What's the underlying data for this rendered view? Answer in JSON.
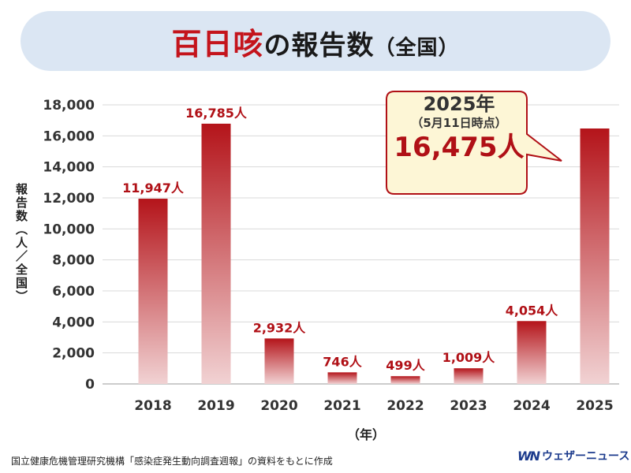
{
  "title": {
    "accent": "百日咳",
    "rest": "の報告数",
    "sub": "（全国）"
  },
  "callout": {
    "year": "2025年",
    "date": "（5月11日時点）",
    "value": "16,475人"
  },
  "footer": {
    "source": "国立健康危機管理研究機構「感染症発生動向調査週報」の資料をもとに作成",
    "brand_logo": "WN",
    "brand_name": "ウェザーニュース"
  },
  "colors": {
    "bar_top": "#b4141a",
    "bar_bottom": "#f1d2d3",
    "label": "#b01016",
    "callout_bg": "#fdf6d6",
    "callout_border": "#b01016",
    "title_bg": "#dbe6f3"
  },
  "chart_data": {
    "type": "bar",
    "title": "百日咳の報告数（全国）",
    "xlabel": "（年）",
    "ylabel": "報告数（人／全国）",
    "ylim": [
      0,
      18000
    ],
    "yticks": [
      0,
      2000,
      4000,
      6000,
      8000,
      10000,
      12000,
      14000,
      16000,
      18000
    ],
    "ytick_labels": [
      "0",
      "2,000",
      "4,000",
      "6,000",
      "8,000",
      "10,000",
      "12,000",
      "14,000",
      "16,000",
      "18,000"
    ],
    "categories": [
      "2018",
      "2019",
      "2020",
      "2021",
      "2022",
      "2023",
      "2024",
      "2025"
    ],
    "values": [
      11947,
      16785,
      2932,
      746,
      499,
      1009,
      4054,
      16475
    ],
    "data_labels": [
      "11,947人",
      "16,785人",
      "2,932人",
      "746人",
      "499人",
      "1,009人",
      "4,054人",
      ""
    ],
    "grid": true
  }
}
